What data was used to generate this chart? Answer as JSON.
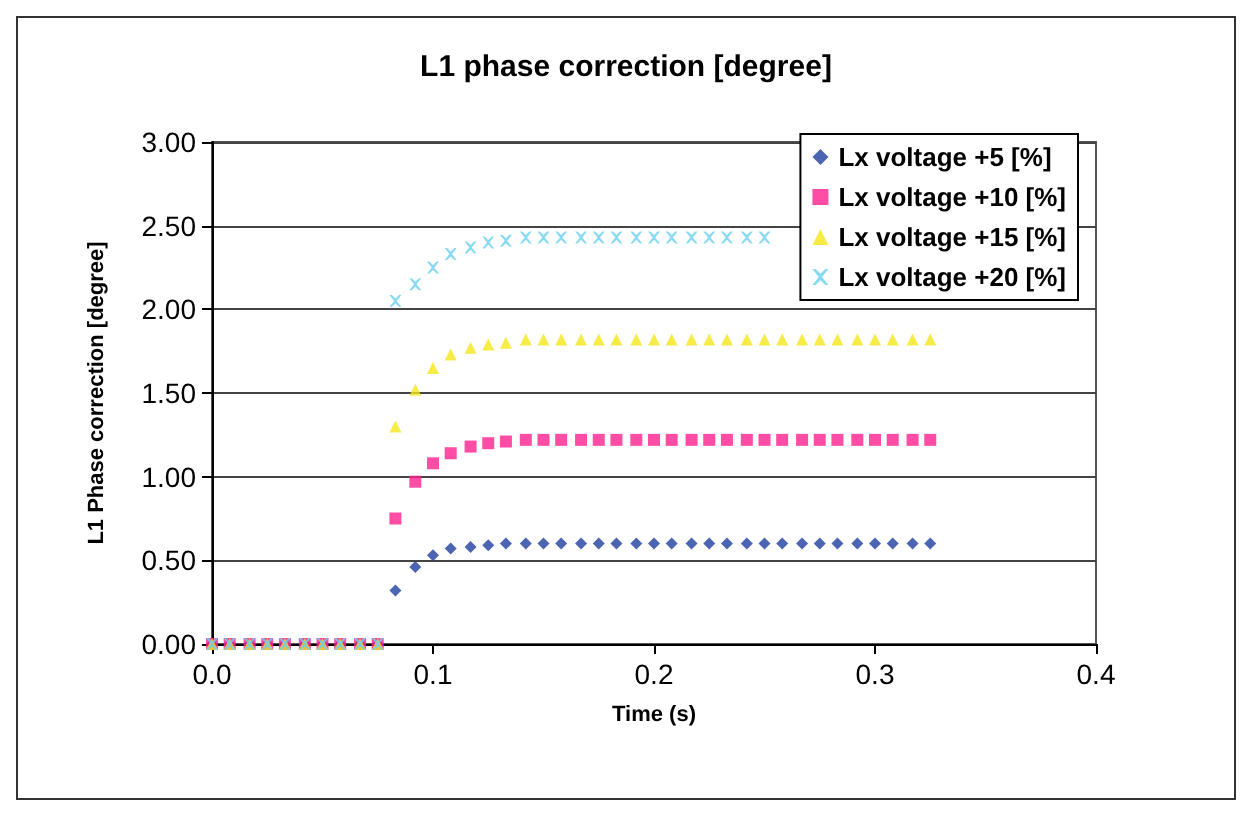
{
  "chart_data": {
    "type": "scatter",
    "title": "L1 phase correction [degree]",
    "xlabel": "Time (s)",
    "ylabel": "L1 Phase correction [degree]",
    "x": [
      0,
      0.008,
      0.017,
      0.025,
      0.033,
      0.042,
      0.05,
      0.058,
      0.067,
      0.075,
      0.083,
      0.092,
      0.1,
      0.108,
      0.117,
      0.125,
      0.133,
      0.142,
      0.15,
      0.158,
      0.167,
      0.175,
      0.183,
      0.192,
      0.2,
      0.208,
      0.217,
      0.225,
      0.233,
      0.242,
      0.25,
      0.258,
      0.267,
      0.275,
      0.283,
      0.292,
      0.3,
      0.308,
      0.317,
      0.325
    ],
    "series": [
      {
        "name": "Lx voltage +5 [%]",
        "color": "#1f3f9f",
        "marker": "diamond",
        "values": [
          0,
          0,
          0,
          0,
          0,
          0,
          0,
          0,
          0,
          0,
          0.32,
          0.46,
          0.53,
          0.57,
          0.58,
          0.59,
          0.6,
          0.6,
          0.6,
          0.6,
          0.6,
          0.6,
          0.6,
          0.6,
          0.6,
          0.6,
          0.6,
          0.6,
          0.6,
          0.6,
          0.6,
          0.6,
          0.6,
          0.6,
          0.6,
          0.6,
          0.6,
          0.6,
          0.6,
          0.6
        ]
      },
      {
        "name": "Lx voltage +10 [%]",
        "color": "#ff1f8f",
        "marker": "square",
        "values": [
          0,
          0,
          0,
          0,
          0,
          0,
          0,
          0,
          0,
          0,
          0.75,
          0.97,
          1.08,
          1.14,
          1.18,
          1.2,
          1.21,
          1.22,
          1.22,
          1.22,
          1.22,
          1.22,
          1.22,
          1.22,
          1.22,
          1.22,
          1.22,
          1.22,
          1.22,
          1.22,
          1.22,
          1.22,
          1.22,
          1.22,
          1.22,
          1.22,
          1.22,
          1.22,
          1.22,
          1.22
        ]
      },
      {
        "name": "Lx voltage +15 [%]",
        "color": "#f5e61a",
        "marker": "triangle",
        "values": [
          0,
          0,
          0,
          0,
          0,
          0,
          0,
          0,
          0,
          0,
          1.3,
          1.52,
          1.65,
          1.73,
          1.77,
          1.79,
          1.8,
          1.82,
          1.82,
          1.82,
          1.82,
          1.82,
          1.82,
          1.82,
          1.82,
          1.82,
          1.82,
          1.82,
          1.82,
          1.82,
          1.82,
          1.82,
          1.82,
          1.82,
          1.82,
          1.82,
          1.82,
          1.82,
          1.82,
          1.82
        ]
      },
      {
        "name": "Lx voltage +20 [%]",
        "color": "#6ad0f0",
        "marker": "cross",
        "values": [
          0,
          0,
          0,
          0,
          0,
          0,
          0,
          0,
          0,
          0,
          2.05,
          2.15,
          2.25,
          2.33,
          2.37,
          2.4,
          2.41,
          2.43,
          2.43,
          2.43,
          2.43,
          2.43,
          2.43,
          2.43,
          2.43,
          2.43,
          2.43,
          2.43,
          2.43,
          2.43,
          2.43,
          null,
          null,
          null,
          null,
          null,
          null,
          null,
          null,
          null
        ]
      }
    ],
    "xlim": [
      0,
      0.4
    ],
    "xticks": [
      {
        "value": 0,
        "label": "0.0"
      },
      {
        "value": 0.1,
        "label": "0.1"
      },
      {
        "value": 0.2,
        "label": "0.2"
      },
      {
        "value": 0.3,
        "label": "0.3"
      },
      {
        "value": 0.4,
        "label": "0.4"
      }
    ],
    "ylim": [
      0,
      3
    ],
    "yticks": [
      {
        "value": 0,
        "label": "0.00"
      },
      {
        "value": 0.5,
        "label": "0.50"
      },
      {
        "value": 1,
        "label": "1.00"
      },
      {
        "value": 1.5,
        "label": "1.50"
      },
      {
        "value": 2,
        "label": "2.00"
      },
      {
        "value": 2.5,
        "label": "2.50"
      },
      {
        "value": 3,
        "label": "3.00"
      }
    ],
    "grid": "y",
    "legend": "top right"
  }
}
